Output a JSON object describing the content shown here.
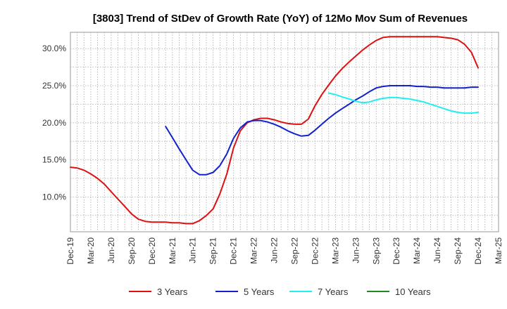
{
  "chart_data": {
    "type": "line",
    "title": "[3803]  Trend of StDev of Growth Rate (YoY) of 12Mo Mov Sum of Revenues",
    "xlabel": "",
    "ylabel": "",
    "x_ticks": [
      "Dec-19",
      "Mar-20",
      "Jun-20",
      "Sep-20",
      "Dec-20",
      "Mar-21",
      "Jun-21",
      "Sep-21",
      "Dec-21",
      "Mar-22",
      "Jun-22",
      "Sep-22",
      "Dec-22",
      "Mar-23",
      "Jun-23",
      "Sep-23",
      "Dec-23",
      "Mar-24",
      "Jun-24",
      "Sep-24",
      "Dec-24",
      "Mar-25"
    ],
    "y_ticks": [
      "10.0%",
      "15.0%",
      "20.0%",
      "25.0%",
      "30.0%"
    ],
    "y_tick_values": [
      10,
      15,
      20,
      25,
      30
    ],
    "ylim": [
      5.3,
      32.2
    ],
    "xlim": [
      0,
      21
    ],
    "grid": true,
    "legend_position": "bottom",
    "series": [
      {
        "name": "3 Years",
        "color": "#dd1111",
        "x": [
          0,
          0.33,
          0.67,
          1,
          1.33,
          1.67,
          2,
          2.33,
          2.67,
          3,
          3.33,
          3.67,
          4,
          4.33,
          4.67,
          5,
          5.33,
          5.67,
          6,
          6.33,
          6.67,
          7,
          7.33,
          7.67,
          8,
          8.33,
          8.67,
          9,
          9.33,
          9.67,
          10,
          10.33,
          10.67,
          11,
          11.33,
          11.67,
          12,
          12.33,
          12.67,
          13,
          13.33,
          13.67,
          14,
          14.33,
          14.67,
          15,
          15.33,
          15.67,
          16,
          16.33,
          16.67,
          17,
          17.33,
          17.67,
          18,
          18.33,
          18.67,
          19,
          19.33,
          19.67,
          20
        ],
        "values": [
          14.0,
          13.9,
          13.6,
          13.1,
          12.5,
          11.7,
          10.7,
          9.7,
          8.7,
          7.7,
          7.0,
          6.7,
          6.6,
          6.6,
          6.6,
          6.5,
          6.5,
          6.4,
          6.4,
          6.8,
          7.5,
          8.4,
          10.4,
          13.1,
          16.6,
          18.9,
          20.0,
          20.4,
          20.6,
          20.6,
          20.4,
          20.1,
          19.9,
          19.8,
          19.8,
          20.5,
          22.3,
          23.8,
          25.1,
          26.3,
          27.3,
          28.2,
          29.0,
          29.8,
          30.5,
          31.1,
          31.5,
          31.6,
          31.6,
          31.6,
          31.6,
          31.6,
          31.6,
          31.6,
          31.6,
          31.5,
          31.4,
          31.2,
          30.6,
          29.5,
          27.4
        ]
      },
      {
        "name": "5 Years",
        "color": "#1122cc",
        "x": [
          4.67,
          5,
          5.33,
          5.67,
          6,
          6.33,
          6.67,
          7,
          7.33,
          7.67,
          8,
          8.33,
          8.67,
          9,
          9.33,
          9.67,
          10,
          10.33,
          10.67,
          11,
          11.33,
          11.67,
          12,
          12.33,
          12.67,
          13,
          13.33,
          13.67,
          14,
          14.33,
          14.67,
          15,
          15.33,
          15.67,
          16,
          16.33,
          16.67,
          17,
          17.33,
          17.67,
          18,
          18.33,
          18.67,
          19,
          19.33,
          19.67,
          20
        ],
        "values": [
          19.5,
          18.0,
          16.5,
          15.0,
          13.6,
          13.0,
          13.0,
          13.3,
          14.2,
          15.8,
          17.9,
          19.3,
          20.1,
          20.3,
          20.3,
          20.1,
          19.8,
          19.4,
          18.9,
          18.5,
          18.2,
          18.3,
          19.0,
          19.8,
          20.6,
          21.3,
          21.9,
          22.5,
          23.1,
          23.6,
          24.2,
          24.7,
          24.9,
          25.0,
          25.0,
          25.0,
          25.0,
          24.9,
          24.9,
          24.8,
          24.8,
          24.7,
          24.7,
          24.7,
          24.7,
          24.8,
          24.8
        ]
      },
      {
        "name": "7 Years",
        "color": "#22eeee",
        "x": [
          12.67,
          13,
          13.33,
          13.67,
          14,
          14.33,
          14.67,
          15,
          15.33,
          15.67,
          16,
          16.33,
          16.67,
          17,
          17.33,
          17.67,
          18,
          18.33,
          18.67,
          19,
          19.33,
          19.67,
          20
        ],
        "values": [
          24.0,
          23.8,
          23.5,
          23.2,
          22.9,
          22.7,
          22.8,
          23.1,
          23.3,
          23.4,
          23.4,
          23.3,
          23.2,
          23.0,
          22.8,
          22.5,
          22.2,
          21.9,
          21.6,
          21.4,
          21.3,
          21.3,
          21.4
        ]
      },
      {
        "name": "10 Years",
        "color": "#228822",
        "x": [],
        "values": []
      }
    ]
  }
}
